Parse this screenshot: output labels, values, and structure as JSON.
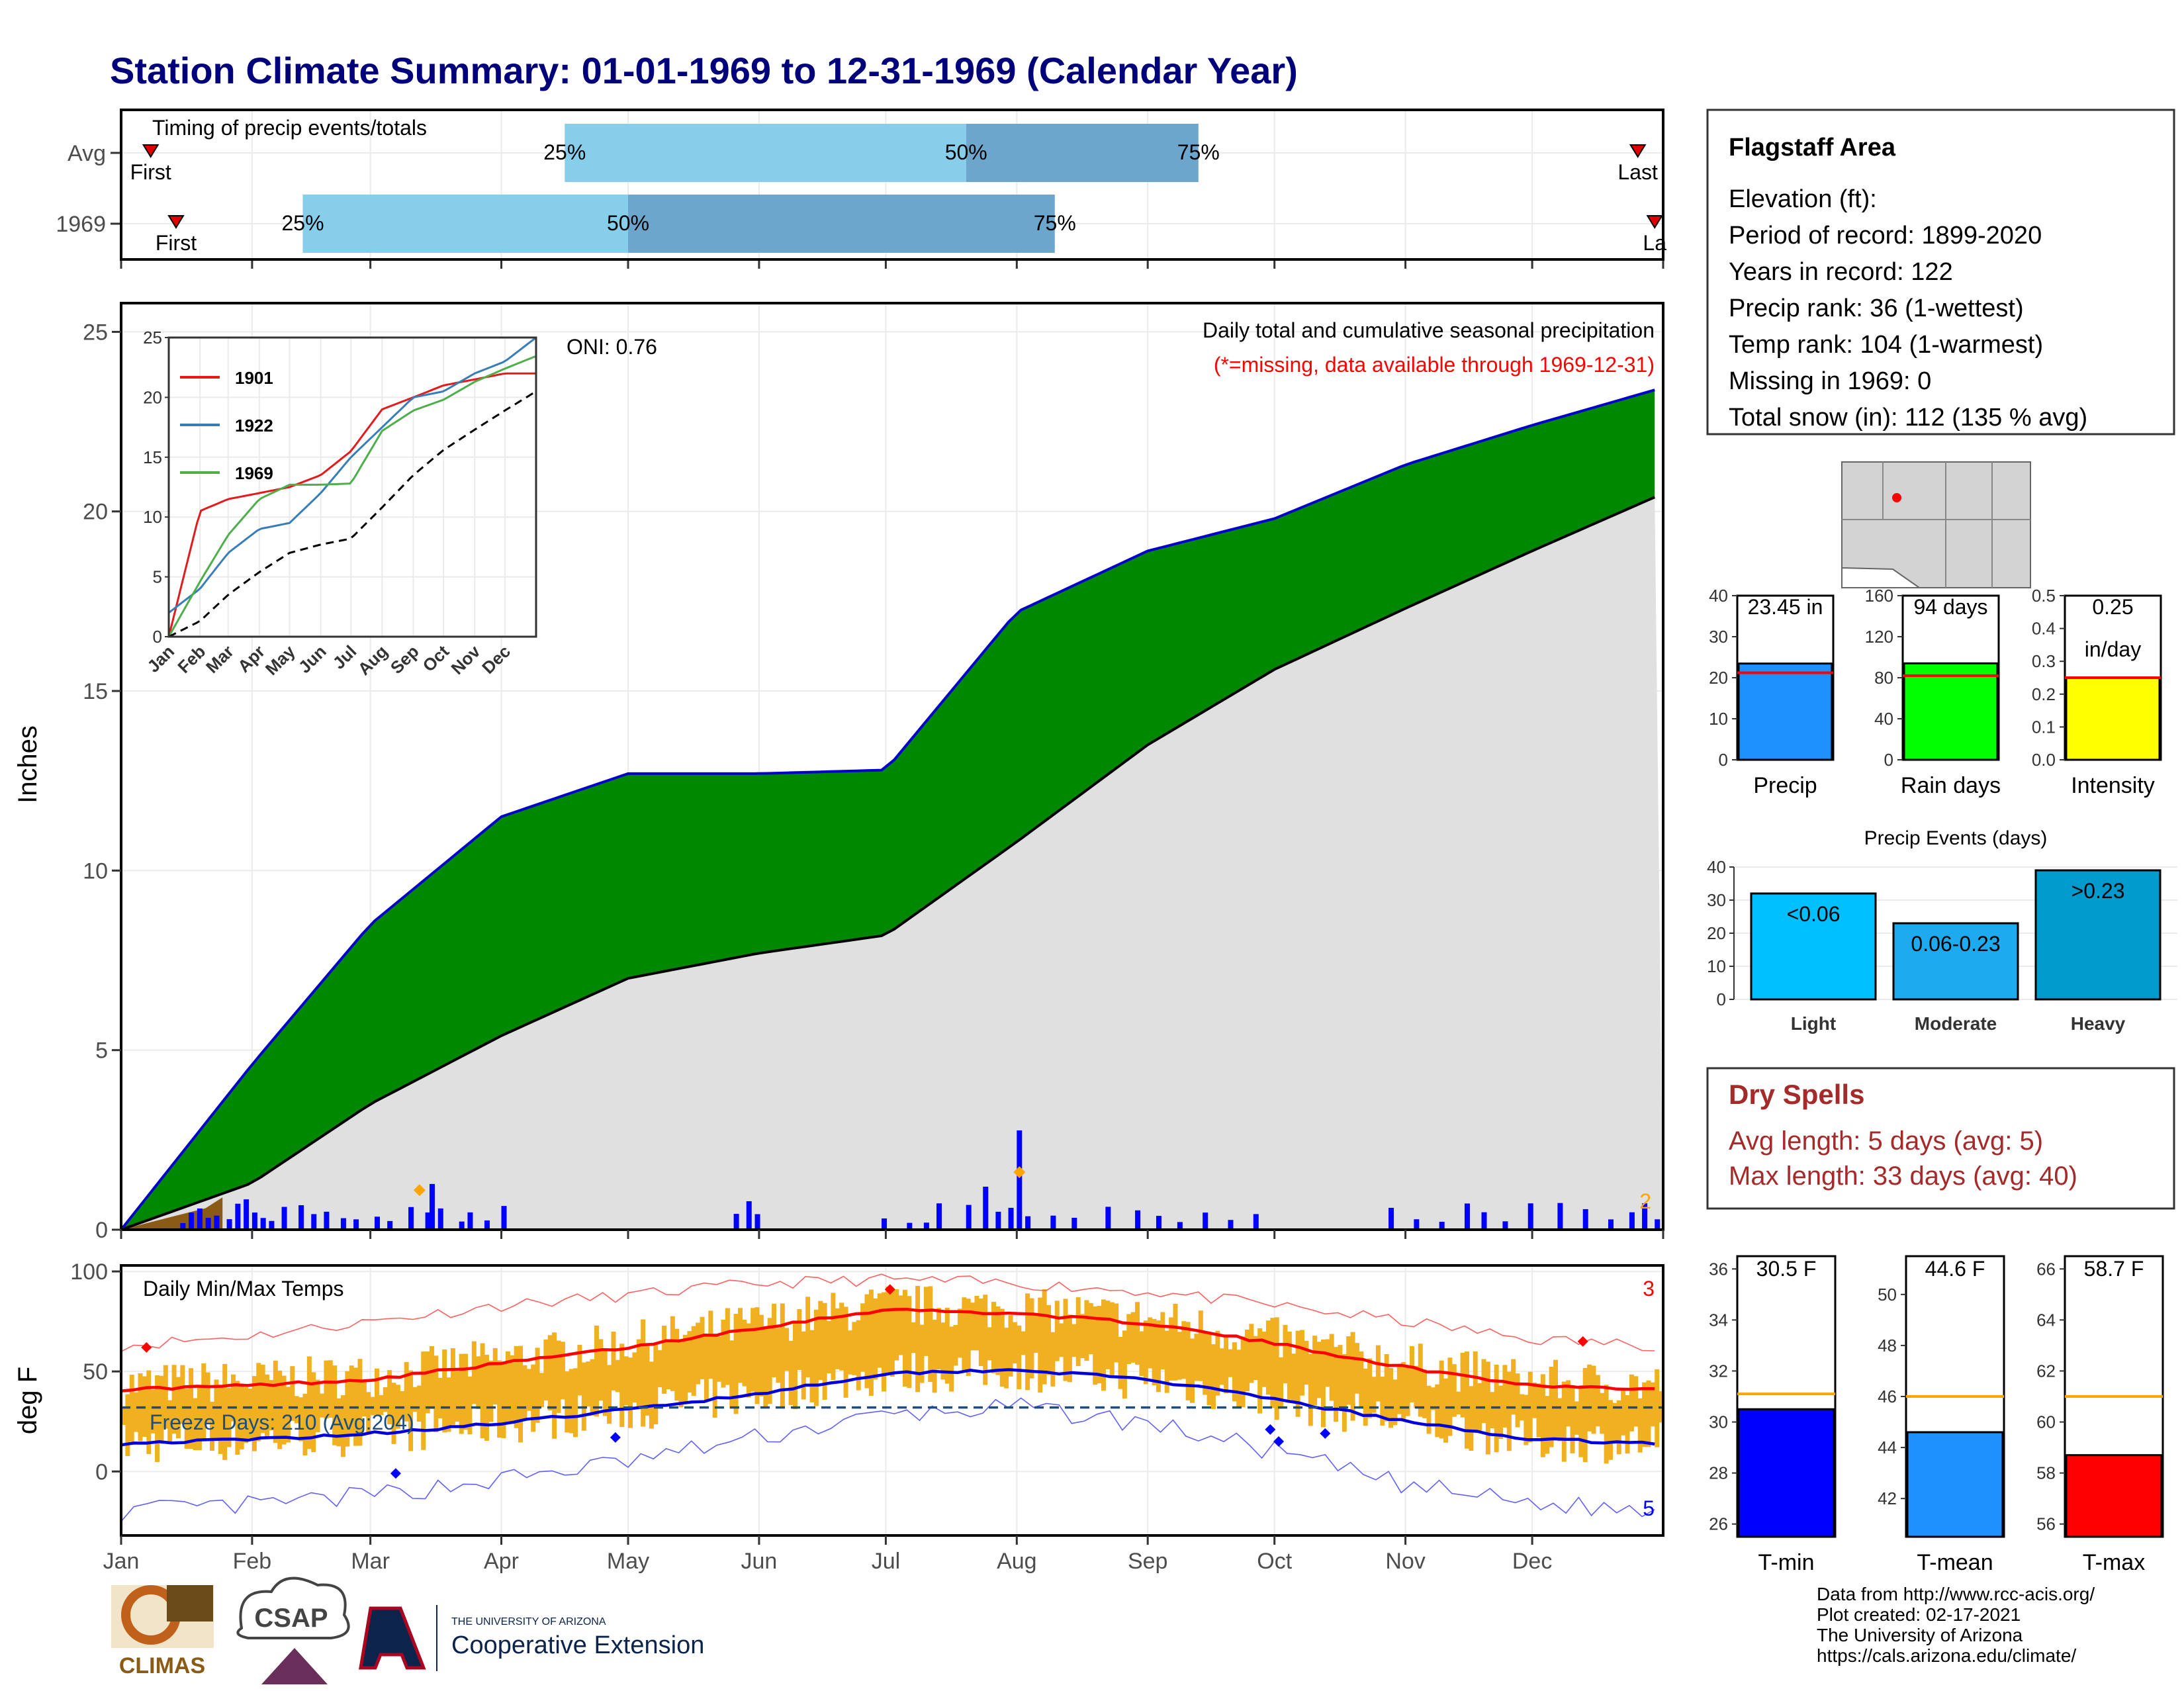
{
  "title": "Station Climate Summary: 01-01-1969 to 12-31-1969 (Calendar Year)",
  "timing": {
    "title": "Timing of precip events/totals",
    "rows": [
      {
        "label": "Avg",
        "first_label": "First",
        "last_label": "Last",
        "first_day": 7,
        "last_day": 359,
        "p25_day": 105,
        "p50_day": 200,
        "p75_day": 255,
        "p25_label": "25%",
        "p50_label": "50%",
        "p75_label": "75%"
      },
      {
        "label": "1969",
        "first_label": "First",
        "last_label": "La",
        "first_day": 13,
        "last_day": 363,
        "p25_day": 43,
        "p50_day": 120,
        "p75_day": 221,
        "p25_label": "25%",
        "p50_label": "50%",
        "p75_label": "75%"
      }
    ],
    "colors": {
      "early": "#87ceeb",
      "late": "#6ca6cd",
      "marker": "#e00000"
    }
  },
  "precip": {
    "ylabel": "Inches",
    "note1": "Daily total and cumulative seasonal precipitation",
    "note2": "(*=missing, data available through 1969-12-31)",
    "oni": "ONI: 0.76",
    "corner_count": "2",
    "colors": {
      "above": "#008800",
      "avg": "#e0e0e0",
      "early": "#8b5a14",
      "line": "#0000cc",
      "daily": "#0000ff"
    },
    "yticks": [
      "0",
      "5",
      "10",
      "15",
      "20",
      "25"
    ]
  },
  "inset": {
    "yticks": [
      "0",
      "5",
      "10",
      "15",
      "20",
      "25"
    ],
    "months": [
      "Jan",
      "Feb",
      "Mar",
      "Apr",
      "May",
      "Jun",
      "Jul",
      "Aug",
      "Sep",
      "Oct",
      "Nov",
      "Dec"
    ],
    "legend": [
      {
        "name": "1901",
        "color": "#e41a1c"
      },
      {
        "name": "1922",
        "color": "#377eb8"
      },
      {
        "name": "1969",
        "color": "#4daf4a"
      }
    ]
  },
  "temps": {
    "title": "Daily Min/Max Temps",
    "ylabel": "deg F",
    "freeze": "Freeze Days: 210 (Avg:204)",
    "count_high": "3",
    "count_low": "5",
    "yticks": [
      "0",
      "50",
      "100"
    ],
    "colors": {
      "bar": "#f0b020",
      "max": "#ff0000",
      "min": "#0000dd",
      "freeze": "#1a4d80"
    }
  },
  "months": [
    "Jan",
    "Feb",
    "Mar",
    "Apr",
    "May",
    "Jun",
    "Jul",
    "Aug",
    "Sep",
    "Oct",
    "Nov",
    "Dec"
  ],
  "info": {
    "station": "Flagstaff Area",
    "lines": [
      "Elevation (ft):",
      "Period of record: 1899-2020",
      "Years in record: 122",
      "Precip rank: 36 (1-wettest)",
      "Temp rank: 104 (1-warmest)",
      "Missing in 1969: 0",
      "Total snow (in): 112 (135 % avg)"
    ]
  },
  "summary_bars": [
    {
      "label": "Precip",
      "value_label": "23.45 in",
      "value": 23.45,
      "avg": 21.2,
      "max": 40,
      "ticks": [
        "0",
        "10",
        "20",
        "30",
        "40"
      ],
      "color": "#1e90ff"
    },
    {
      "label": "Rain days",
      "value_label": "94 days",
      "value": 94,
      "avg": 82,
      "max": 160,
      "ticks": [
        "0",
        "40",
        "80",
        "120",
        "160"
      ],
      "color": "#00ff00"
    },
    {
      "label": "Intensity",
      "value_label": "0.25",
      "value_label2": "in/day",
      "value": 0.25,
      "avg": 0.25,
      "max": 0.5,
      "ticks": [
        "0.0",
        "0.1",
        "0.2",
        "0.3",
        "0.4",
        "0.5"
      ],
      "color": "#ffff00"
    }
  ],
  "events": {
    "title": "Precip Events (days)",
    "ticks": [
      "0",
      "10",
      "20",
      "30",
      "40"
    ],
    "max": 40,
    "bars": [
      {
        "category": "Light",
        "label": "<0.06",
        "value": 32,
        "color": "#00bfff"
      },
      {
        "category": "Moderate",
        "label": "0.06-0.23",
        "value": 23,
        "color": "#1eaaee"
      },
      {
        "category": "Heavy",
        "label": ">0.23",
        "value": 39,
        "color": "#009acd"
      }
    ]
  },
  "dry": {
    "title": "Dry Spells",
    "line1": "Avg length: 5 days (avg: 5)",
    "line2": "Max length: 33 days (avg: 40)",
    "color": "#a52a2a"
  },
  "temp_bars": [
    {
      "label": "T-min",
      "value_label": "30.5 F",
      "value": 30.5,
      "avg": 31.1,
      "min": 25.5,
      "max": 36.5,
      "ticks": [
        26,
        28,
        30,
        32,
        34,
        36
      ],
      "color": "#0000ff"
    },
    {
      "label": "T-mean",
      "value_label": "44.6 F",
      "value": 44.6,
      "avg": 46.0,
      "min": 40.5,
      "max": 51.5,
      "ticks": [
        42,
        44,
        46,
        48,
        50
      ],
      "color": "#1e90ff"
    },
    {
      "label": "T-max",
      "value_label": "58.7 F",
      "value": 58.7,
      "avg": 61.0,
      "min": 55.5,
      "max": 66.5,
      "ticks": [
        56,
        58,
        60,
        62,
        64,
        66
      ],
      "color": "#ff0000"
    }
  ],
  "footer": [
    "Data from http://www.rcc-acis.org/",
    "Plot created: 02-17-2021",
    "The University of Arizona",
    "https://cals.arizona.edu/climate/"
  ],
  "logos": {
    "climas": "CLIMAS",
    "csap": "CSAP",
    "ua_small": "THE UNIVERSITY OF ARIZONA",
    "ua_big": "Cooperative Extension"
  },
  "chart_data": [
    {
      "type": "area",
      "title": "Daily total and cumulative seasonal precipitation",
      "ylabel": "Inches",
      "ylim": [
        0,
        25
      ],
      "x": [
        "Jan 1",
        "Feb 1",
        "Mar 1",
        "Apr 1",
        "May 1",
        "Jun 1",
        "Jul 1",
        "Aug 1",
        "Sep 1",
        "Oct 1",
        "Nov 1",
        "Dec 1",
        "Dec 31"
      ],
      "series": [
        {
          "name": "1969",
          "values": [
            0.0,
            4.6,
            8.5,
            11.5,
            12.7,
            12.7,
            12.8,
            17.2,
            18.9,
            19.8,
            21.3,
            22.4,
            23.45
          ]
        },
        {
          "name": "",
          "values": [
            0.0,
            1.3,
            3.5,
            5.4,
            7.0,
            7.7,
            8.2,
            10.8,
            13.5,
            15.6,
            17.3,
            18.9,
            20.5
          ]
        }
      ]
    },
    {
      "type": "line",
      "xlabel": "",
      "ylabel": "",
      "ylim": [
        0,
        25
      ],
      "x": [
        "Jan",
        "Feb",
        "Mar",
        "Apr",
        "May",
        "Jun",
        "Jul",
        "Aug",
        "Sep",
        "Oct",
        "Nov",
        "Dec",
        "Dec 31"
      ],
      "series": [
        {
          "name": "1901",
          "values": [
            0,
            10.5,
            11.5,
            12.0,
            12.5,
            13.5,
            15.5,
            19.0,
            20.0,
            21.0,
            21.5,
            22.0,
            22.0
          ]
        },
        {
          "name": "1922",
          "values": [
            2.0,
            4.0,
            7.0,
            9.0,
            9.5,
            12.0,
            15.0,
            17.5,
            20.0,
            20.5,
            22.0,
            23.0,
            25.0
          ]
        },
        {
          "name": "1969",
          "values": [
            0,
            4.6,
            8.5,
            11.5,
            12.7,
            12.7,
            12.8,
            17.2,
            18.9,
            19.8,
            21.3,
            22.4,
            23.45
          ]
        },
        {
          "name": "",
          "values": [
            0,
            1.3,
            3.5,
            5.4,
            7.0,
            7.7,
            8.2,
            10.8,
            13.5,
            15.6,
            17.3,
            18.9,
            20.5
          ]
        }
      ]
    },
    {
      "type": "line",
      "title": "Daily Min/Max Temps",
      "ylabel": "deg F",
      "ylim": [
        -30,
        100
      ],
      "x": [
        "Jan",
        "Feb",
        "Mar",
        "Apr",
        "May",
        "Jun",
        "Jul",
        "Aug",
        "Sep",
        "Oct",
        "Nov",
        "Dec",
        "Dec 31"
      ],
      "series": [
        {
          "name": "",
          "values": [
            41,
            43,
            46,
            54,
            62,
            72,
            81,
            79,
            74,
            64,
            52,
            43,
            41
          ]
        },
        {
          "name": "",
          "values": [
            14,
            16,
            19,
            24,
            31,
            39,
            49,
            51,
            46,
            36,
            25,
            16,
            14
          ]
        },
        {
          "name": "",
          "values": [
            63,
            68,
            75,
            83,
            88,
            94,
            96,
            94,
            90,
            83,
            75,
            66,
            63
          ]
        },
        {
          "name": "",
          "values": [
            -20,
            -17,
            -12,
            -4,
            5,
            17,
            28,
            32,
            24,
            10,
            -7,
            -16,
            -20
          ]
        }
      ]
    },
    {
      "type": "bar",
      "title": "Precip Events (days)",
      "categories": [
        "Light",
        "Moderate",
        "Heavy"
      ],
      "values": [
        32,
        23,
        39
      ]
    },
    {
      "type": "bar",
      "categories": [
        "Precip",
        "Rain days",
        "Intensity"
      ],
      "values": [
        23.45,
        94,
        0.25
      ]
    },
    {
      "type": "bar",
      "categories": [
        "T-min",
        "T-mean",
        "T-max"
      ],
      "values": [
        30.5,
        44.6,
        58.7
      ]
    }
  ]
}
